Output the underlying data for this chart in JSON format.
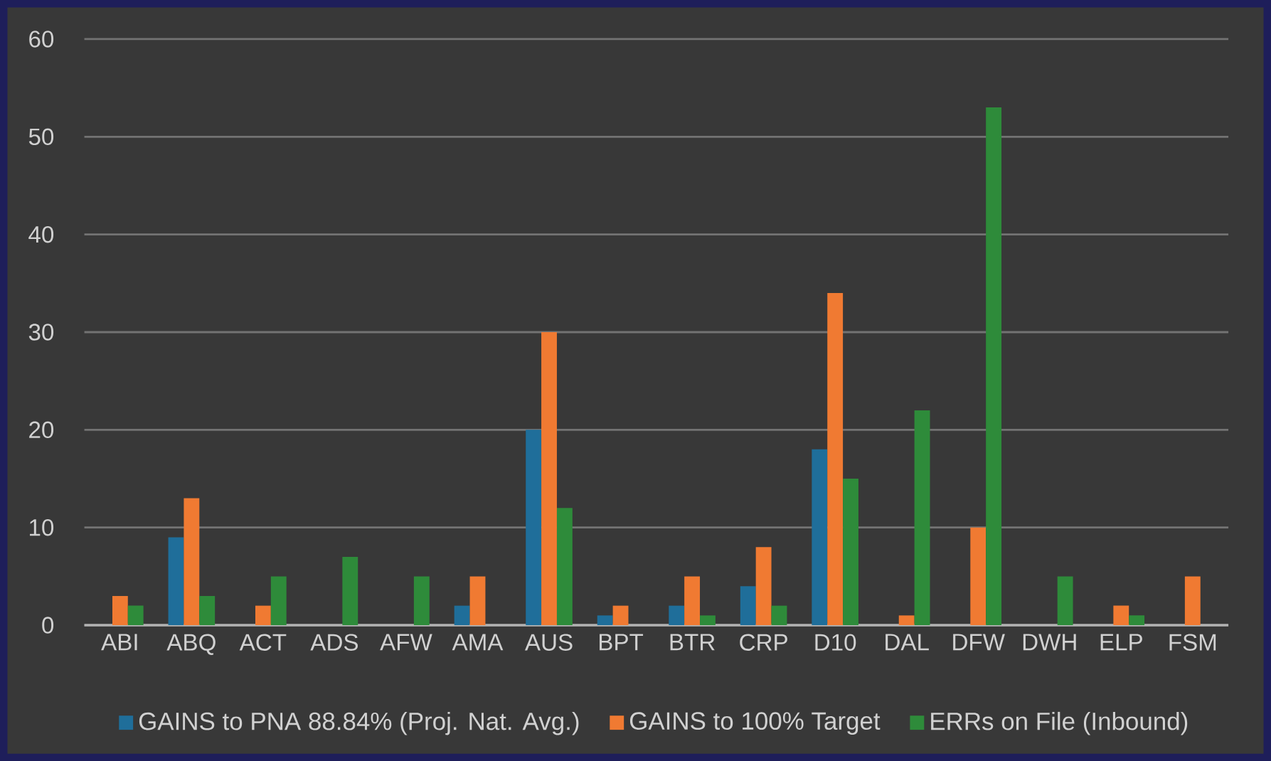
{
  "chart_data": {
    "type": "bar",
    "categories": [
      "ABI",
      "ABQ",
      "ACT",
      "ADS",
      "AFW",
      "AMA",
      "AUS",
      "BPT",
      "BTR",
      "CRP",
      "D10",
      "DAL",
      "DFW",
      "DWH",
      "ELP",
      "FSM"
    ],
    "series": [
      {
        "name": "GAINS to PNA 88.84% (Proj. Nat. Avg.)",
        "color": "#1f6e9a",
        "values": [
          null,
          9,
          null,
          null,
          null,
          2,
          20,
          1,
          2,
          4,
          18,
          null,
          null,
          null,
          null,
          null
        ]
      },
      {
        "name": "GAINS to 100% Target",
        "color": "#f07a32",
        "values": [
          3,
          13,
          2,
          null,
          null,
          5,
          30,
          2,
          5,
          8,
          34,
          1,
          10,
          null,
          2,
          5
        ]
      },
      {
        "name": "ERRs on File (Inbound)",
        "color": "#2e8b3a",
        "values": [
          2,
          3,
          5,
          7,
          5,
          null,
          12,
          null,
          1,
          2,
          15,
          22,
          53,
          5,
          1,
          null
        ]
      }
    ],
    "ylim": [
      0,
      60
    ],
    "yticks": [
      0,
      10,
      20,
      30,
      40,
      50,
      60
    ],
    "grid": "y",
    "legend": "bottom"
  }
}
